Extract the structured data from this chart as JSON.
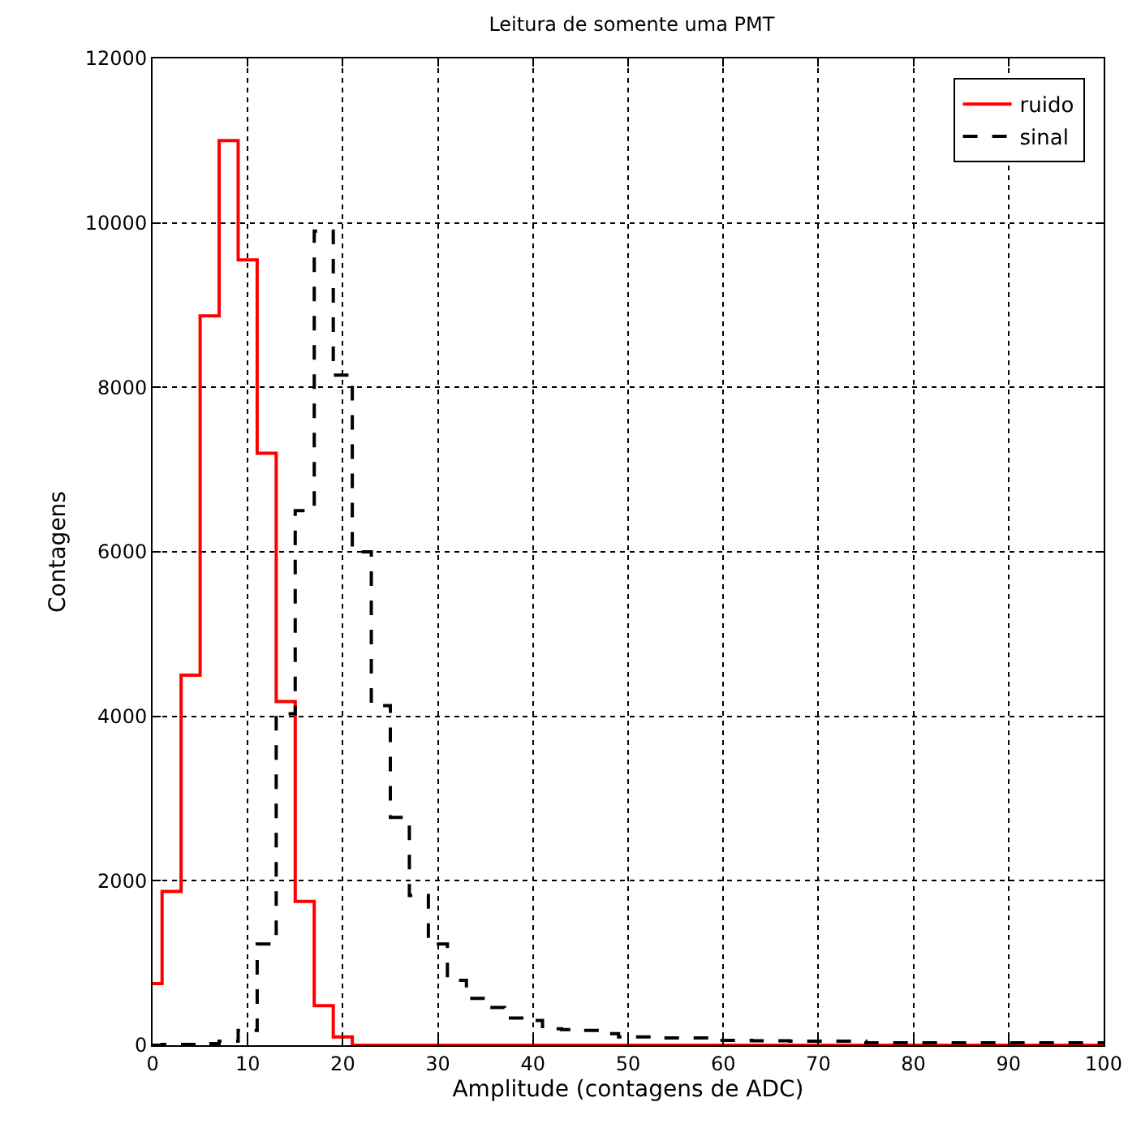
{
  "chart_data": {
    "type": "histogram",
    "title": "Leitura de somente uma PMT",
    "xlabel": "Amplitude (contagens de ADC)",
    "ylabel": "Contagens",
    "bins": [
      0,
      1,
      3,
      5,
      7,
      9,
      11,
      13,
      15,
      17,
      19,
      21,
      23,
      25,
      27,
      29,
      31,
      33,
      35,
      37,
      39,
      41,
      43,
      45,
      47,
      49,
      51,
      53,
      55,
      57,
      59,
      61,
      63,
      65,
      67,
      69,
      71,
      73,
      75,
      77,
      79,
      81,
      83,
      85,
      87,
      89,
      91,
      93,
      95,
      97,
      99,
      100
    ],
    "series": [
      {
        "name": "ruido",
        "color": "#ff0000",
        "line_style": "solid",
        "values": [
          750,
          1870,
          4500,
          8870,
          11000,
          9550,
          7200,
          4180,
          1750,
          480,
          100,
          0,
          0,
          0,
          0,
          0,
          0,
          0,
          0,
          0,
          0,
          0,
          0,
          0,
          0,
          0,
          0,
          0,
          0,
          0,
          0,
          0,
          0,
          0,
          0,
          0,
          0,
          0,
          0,
          0,
          0,
          0,
          0,
          0,
          0,
          0,
          0,
          0,
          0,
          0,
          0
        ]
      },
      {
        "name": "sinal",
        "color": "#000000",
        "line_style": "dashed",
        "values": [
          0,
          10,
          10,
          20,
          50,
          180,
          1230,
          4030,
          6500,
          9900,
          8150,
          6000,
          4130,
          2770,
          1820,
          1230,
          790,
          570,
          460,
          330,
          300,
          200,
          190,
          180,
          140,
          100,
          100,
          90,
          90,
          90,
          60,
          60,
          55,
          55,
          50,
          50,
          50,
          50,
          30,
          30,
          30,
          30,
          30,
          30,
          30,
          30,
          30,
          30,
          30,
          30,
          30
        ]
      }
    ],
    "xlim": [
      0,
      100
    ],
    "xticks": [
      0,
      10,
      20,
      30,
      40,
      50,
      60,
      70,
      80,
      90,
      100
    ],
    "ylim": [
      0,
      12000
    ],
    "yticks": [
      0,
      2000,
      4000,
      6000,
      8000,
      10000,
      12000
    ],
    "grid": true,
    "legend": "top right",
    "marker": "none"
  }
}
